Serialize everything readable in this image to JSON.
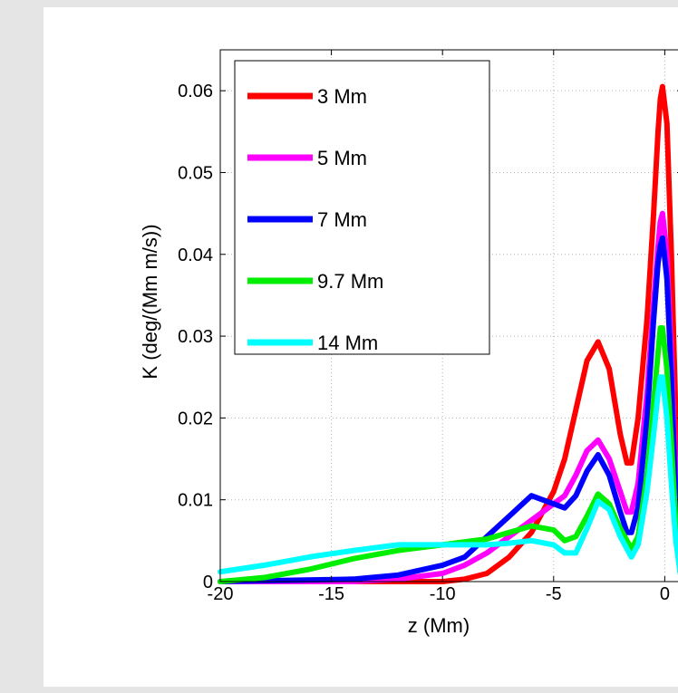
{
  "chart_data": {
    "type": "line",
    "title": "",
    "xlabel": "z (Mm)",
    "ylabel": "K (deg/(Mm m/s))",
    "xlim": [
      -20,
      0.8
    ],
    "ylim": [
      0,
      0.065
    ],
    "xticks": [
      -20,
      -15,
      -10,
      -5,
      0
    ],
    "xtick_labels": [
      "-20",
      "-15",
      "-10",
      "-5",
      "0"
    ],
    "yticks": [
      0,
      0.01,
      0.02,
      0.03,
      0.04,
      0.05,
      0.06
    ],
    "ytick_labels": [
      "0",
      "0.01",
      "0.02",
      "0.03",
      "0.04",
      "0.05",
      "0.06"
    ],
    "grid": true,
    "legend_position": "top-left",
    "series": [
      {
        "name": "3 Mm",
        "color": "#ff0000",
        "x": [
          -20,
          -14,
          -12,
          -10,
          -9,
          -8,
          -7,
          -6,
          -5,
          -4.5,
          -4,
          -3.5,
          -3,
          -2.5,
          -2,
          -1.7,
          -1.5,
          -1.2,
          -0.8,
          -0.5,
          -0.3,
          -0.2,
          -0.1,
          0.1,
          0.3,
          0.5,
          0.7
        ],
        "y": [
          0,
          0,
          0,
          0,
          0.0003,
          0.001,
          0.003,
          0.006,
          0.011,
          0.015,
          0.021,
          0.027,
          0.0293,
          0.026,
          0.018,
          0.0145,
          0.0145,
          0.02,
          0.032,
          0.045,
          0.055,
          0.059,
          0.0605,
          0.056,
          0.04,
          0.02,
          0.003
        ]
      },
      {
        "name": "5 Mm",
        "color": "#ff00ff",
        "x": [
          -20,
          -14,
          -12,
          -10,
          -9,
          -8,
          -7,
          -6,
          -5,
          -4.5,
          -4,
          -3.5,
          -3,
          -2.5,
          -2,
          -1.7,
          -1.5,
          -1.2,
          -0.8,
          -0.5,
          -0.3,
          -0.2,
          -0.1,
          0.1,
          0.3,
          0.5,
          0.7
        ],
        "y": [
          0,
          0,
          0.0003,
          0.001,
          0.002,
          0.0035,
          0.0055,
          0.0075,
          0.0095,
          0.0105,
          0.013,
          0.016,
          0.0173,
          0.015,
          0.011,
          0.0085,
          0.0085,
          0.012,
          0.023,
          0.034,
          0.041,
          0.044,
          0.045,
          0.04,
          0.028,
          0.012,
          0.002
        ]
      },
      {
        "name": "7 Mm",
        "color": "#0000ff",
        "x": [
          -20,
          -14,
          -12,
          -10,
          -9,
          -8,
          -7,
          -6,
          -5,
          -4.5,
          -4,
          -3.5,
          -3,
          -2.5,
          -2,
          -1.7,
          -1.5,
          -1.2,
          -0.8,
          -0.5,
          -0.3,
          -0.2,
          -0.1,
          0.1,
          0.3,
          0.5,
          0.7
        ],
        "y": [
          0,
          0.0003,
          0.0008,
          0.002,
          0.003,
          0.0055,
          0.008,
          0.0105,
          0.0095,
          0.009,
          0.0105,
          0.0135,
          0.0155,
          0.013,
          0.0085,
          0.006,
          0.006,
          0.009,
          0.02,
          0.032,
          0.039,
          0.041,
          0.042,
          0.037,
          0.025,
          0.01,
          0.002
        ]
      },
      {
        "name": "9.7 Mm",
        "color": "#00ee00",
        "x": [
          -20,
          -18,
          -16,
          -14,
          -12,
          -10,
          -8,
          -7,
          -6,
          -5,
          -4.5,
          -4,
          -3.5,
          -3,
          -2.5,
          -2,
          -1.5,
          -1.2,
          -0.8,
          -0.5,
          -0.3,
          -0.2,
          -0.1,
          0.1,
          0.3,
          0.5,
          0.7
        ],
        "y": [
          0,
          0.0005,
          0.0015,
          0.0028,
          0.0038,
          0.0045,
          0.0052,
          0.006,
          0.0068,
          0.0063,
          0.005,
          0.0055,
          0.008,
          0.0107,
          0.0095,
          0.0065,
          0.004,
          0.0055,
          0.013,
          0.022,
          0.028,
          0.031,
          0.031,
          0.026,
          0.017,
          0.007,
          0.001
        ]
      },
      {
        "name": "14 Mm",
        "color": "#00ffff",
        "x": [
          -20,
          -18,
          -16,
          -14,
          -12,
          -10,
          -8,
          -7,
          -6,
          -5,
          -4.5,
          -4,
          -3.5,
          -3,
          -2.5,
          -2,
          -1.5,
          -1.2,
          -0.8,
          -0.5,
          -0.3,
          -0.2,
          -0.1,
          0.1,
          0.3,
          0.5,
          0.7
        ],
        "y": [
          0.0012,
          0.002,
          0.003,
          0.0038,
          0.0045,
          0.0045,
          0.0045,
          0.0047,
          0.005,
          0.0045,
          0.0035,
          0.0035,
          0.0065,
          0.0098,
          0.0088,
          0.0055,
          0.003,
          0.0045,
          0.011,
          0.018,
          0.023,
          0.025,
          0.025,
          0.02,
          0.012,
          0.005,
          0.001
        ]
      }
    ]
  }
}
